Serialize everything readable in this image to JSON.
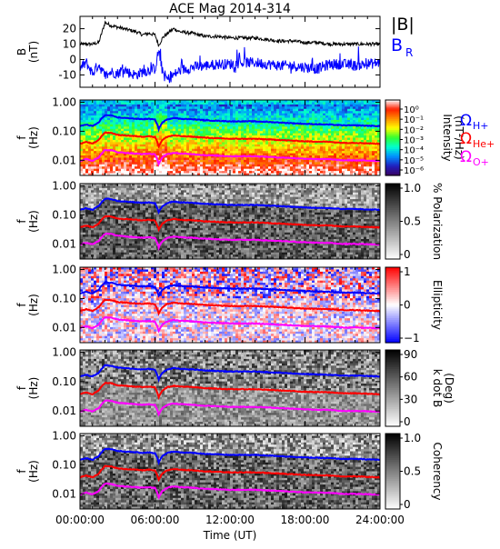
{
  "title": "ACE Mag 2014-314",
  "chart_data": [
    {
      "type": "line",
      "panel": "magnetic-field",
      "ylabel_top": "B",
      "ylabel_bottom": "(nT)",
      "ylim": [
        -18,
        28
      ],
      "yticks": [
        20,
        10,
        0,
        -10
      ],
      "xlim_hours": [
        0,
        24
      ],
      "series": [
        {
          "name": "|B|",
          "color": "#000000",
          "x_hours": [
            0,
            1,
            1.5,
            2,
            2.5,
            3,
            3.5,
            4,
            4.5,
            5,
            5.5,
            6,
            6.3,
            6.6,
            7,
            7.5,
            8,
            9,
            10,
            11,
            12,
            13,
            14,
            15,
            16,
            17,
            18,
            19,
            20,
            21,
            22,
            23,
            24
          ],
          "values": [
            10,
            10,
            11,
            24,
            22,
            21,
            20,
            19,
            18,
            16,
            17,
            16,
            9,
            14,
            17,
            20,
            18,
            17,
            15,
            15,
            14,
            14,
            14,
            13,
            12,
            12,
            11,
            11,
            10,
            10,
            10,
            10,
            10
          ]
        },
        {
          "name": "B_R",
          "color": "#0000ff",
          "x_hours": [
            0,
            0.5,
            1,
            1.5,
            2,
            2.5,
            3,
            3.5,
            4,
            4.5,
            5,
            5.5,
            6,
            6.3,
            6.6,
            7,
            7.5,
            8,
            9,
            10,
            11,
            12,
            13,
            14,
            15,
            16,
            17,
            18,
            19,
            20,
            21,
            22,
            23,
            24
          ],
          "values": [
            -6,
            -2,
            -9,
            -3,
            -11,
            -8,
            -9,
            -6,
            -9,
            -10,
            -8,
            -7,
            -6,
            6,
            -8,
            -13,
            -10,
            -7,
            -5,
            -4,
            -3,
            -3,
            -2,
            -2,
            -3,
            -4,
            -4,
            -5,
            -6,
            -3,
            -3,
            -4,
            -3,
            -2
          ]
        }
      ]
    },
    {
      "type": "heatmap",
      "panel": "power-spectrum",
      "ylabel_top": "f",
      "ylabel_bottom": "(Hz)",
      "colorbar_label": "Intensity (nT²/Hz)",
      "colorbar_ticks": [
        "10⁰",
        "10⁻¹",
        "10⁻²",
        "10⁻³",
        "10⁻⁴",
        "10⁻⁵",
        "10⁻⁶"
      ],
      "colormap": [
        "#3a0060",
        "#2020c0",
        "#0090ff",
        "#00ffd0",
        "#30ff30",
        "#ffff00",
        "#ff9000",
        "#ff2000",
        "#ffffff"
      ]
    },
    {
      "type": "heatmap",
      "panel": "polarization",
      "ylabel_top": "f",
      "ylabel_bottom": "(Hz)",
      "colorbar_label": "% Polarization",
      "colorbar_ticks": [
        "1.0",
        "0.5",
        "0"
      ],
      "colormap": [
        "#ffffff",
        "#000000"
      ]
    },
    {
      "type": "heatmap",
      "panel": "ellipticity",
      "ylabel_top": "f",
      "ylabel_bottom": "(Hz)",
      "colorbar_label": "Ellipticity",
      "colorbar_ticks": [
        "1",
        "0",
        "−1"
      ],
      "colormap": [
        "#0000ff",
        "#ffffff",
        "#ff0000"
      ]
    },
    {
      "type": "heatmap",
      "panel": "k-dot-b",
      "ylabel_top": "f",
      "ylabel_bottom": "(Hz)",
      "colorbar_label": "k dot B",
      "colorbar_label2": "(Deg)",
      "colorbar_ticks": [
        "90",
        "60",
        "30",
        "0"
      ],
      "colormap": [
        "#ffffff",
        "#000000"
      ]
    },
    {
      "type": "heatmap",
      "panel": "coherency",
      "ylabel_top": "f",
      "ylabel_bottom": "(Hz)",
      "colorbar_label": "Coherency",
      "colorbar_ticks": [
        "1.0",
        "0.5",
        "0"
      ],
      "colormap": [
        "#ffffff",
        "#000000"
      ]
    }
  ],
  "spectrogram_axes": {
    "yticks": [
      "1.00",
      "0.10",
      "0.01"
    ],
    "ytick_values": [
      1.0,
      0.1,
      0.01
    ],
    "ylim": [
      0.003,
      1.2
    ],
    "xticks": [
      "00:00:00",
      "06:00:00",
      "12:00:00",
      "18:00:00",
      "24:00:00"
    ],
    "xlabel": "Time (UT)"
  },
  "gyrofrequency_lines": {
    "x_hours": [
      0,
      0.5,
      1,
      1.5,
      2,
      2.5,
      3,
      4,
      5,
      5.5,
      6,
      6.3,
      6.6,
      7,
      7.5,
      8,
      9,
      10,
      12,
      14,
      16,
      18,
      20,
      21,
      22,
      24
    ],
    "series": [
      {
        "name": "Ω",
        "subscript": "H+",
        "color": "#0000ff",
        "values": [
          0.15,
          0.17,
          0.15,
          0.2,
          0.36,
          0.35,
          0.3,
          0.28,
          0.26,
          0.27,
          0.25,
          0.12,
          0.2,
          0.26,
          0.29,
          0.27,
          0.26,
          0.24,
          0.22,
          0.22,
          0.2,
          0.18,
          0.17,
          0.16,
          0.16,
          0.15
        ]
      },
      {
        "name": "Ω",
        "subscript": "He+",
        "color": "#ff0000",
        "values": [
          0.037,
          0.043,
          0.037,
          0.05,
          0.09,
          0.088,
          0.075,
          0.07,
          0.065,
          0.068,
          0.063,
          0.03,
          0.05,
          0.065,
          0.072,
          0.068,
          0.065,
          0.06,
          0.055,
          0.055,
          0.05,
          0.045,
          0.043,
          0.04,
          0.04,
          0.037
        ]
      },
      {
        "name": "Ω",
        "subscript": "O+",
        "color": "#ff00ff",
        "values": [
          0.0095,
          0.011,
          0.0095,
          0.0125,
          0.0225,
          0.022,
          0.019,
          0.0175,
          0.0163,
          0.017,
          0.0158,
          0.0075,
          0.0125,
          0.0163,
          0.018,
          0.017,
          0.0163,
          0.015,
          0.0138,
          0.0138,
          0.0125,
          0.0113,
          0.0108,
          0.01,
          0.01,
          0.0095
        ]
      }
    ]
  }
}
